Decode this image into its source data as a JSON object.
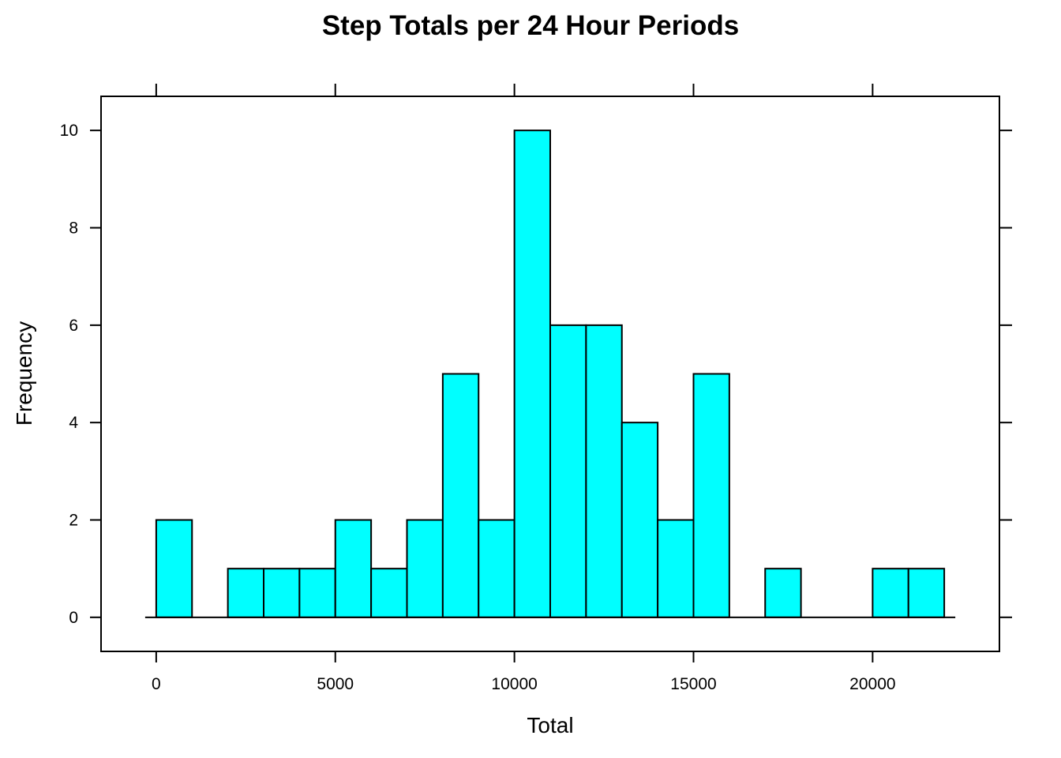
{
  "chart_data": {
    "type": "bar",
    "title": "Step Totals per 24 Hour Periods",
    "xlabel": "Total",
    "ylabel": "Frequency",
    "bin_width": 1000,
    "bins": [
      {
        "start": 0,
        "end": 1000,
        "count": 2
      },
      {
        "start": 1000,
        "end": 2000,
        "count": 0
      },
      {
        "start": 2000,
        "end": 3000,
        "count": 1
      },
      {
        "start": 3000,
        "end": 4000,
        "count": 1
      },
      {
        "start": 4000,
        "end": 5000,
        "count": 1
      },
      {
        "start": 5000,
        "end": 6000,
        "count": 2
      },
      {
        "start": 6000,
        "end": 7000,
        "count": 1
      },
      {
        "start": 7000,
        "end": 8000,
        "count": 2
      },
      {
        "start": 8000,
        "end": 9000,
        "count": 5
      },
      {
        "start": 9000,
        "end": 10000,
        "count": 2
      },
      {
        "start": 10000,
        "end": 11000,
        "count": 10
      },
      {
        "start": 11000,
        "end": 12000,
        "count": 6
      },
      {
        "start": 12000,
        "end": 13000,
        "count": 6
      },
      {
        "start": 13000,
        "end": 14000,
        "count": 4
      },
      {
        "start": 14000,
        "end": 15000,
        "count": 2
      },
      {
        "start": 15000,
        "end": 16000,
        "count": 5
      },
      {
        "start": 16000,
        "end": 17000,
        "count": 0
      },
      {
        "start": 17000,
        "end": 18000,
        "count": 1
      },
      {
        "start": 18000,
        "end": 19000,
        "count": 0
      },
      {
        "start": 19000,
        "end": 20000,
        "count": 0
      },
      {
        "start": 20000,
        "end": 21000,
        "count": 1
      },
      {
        "start": 21000,
        "end": 22000,
        "count": 1
      }
    ],
    "x_ticks": [
      "0",
      "5000",
      "10000",
      "15000",
      "20000"
    ],
    "y_ticks": [
      "0",
      "2",
      "4",
      "6",
      "8",
      "10"
    ],
    "xlim": [
      -1540,
      23540
    ],
    "ylim": [
      -0.7,
      10.7
    ],
    "bar_color": "#00ffff",
    "grid": false,
    "legend": "none"
  }
}
